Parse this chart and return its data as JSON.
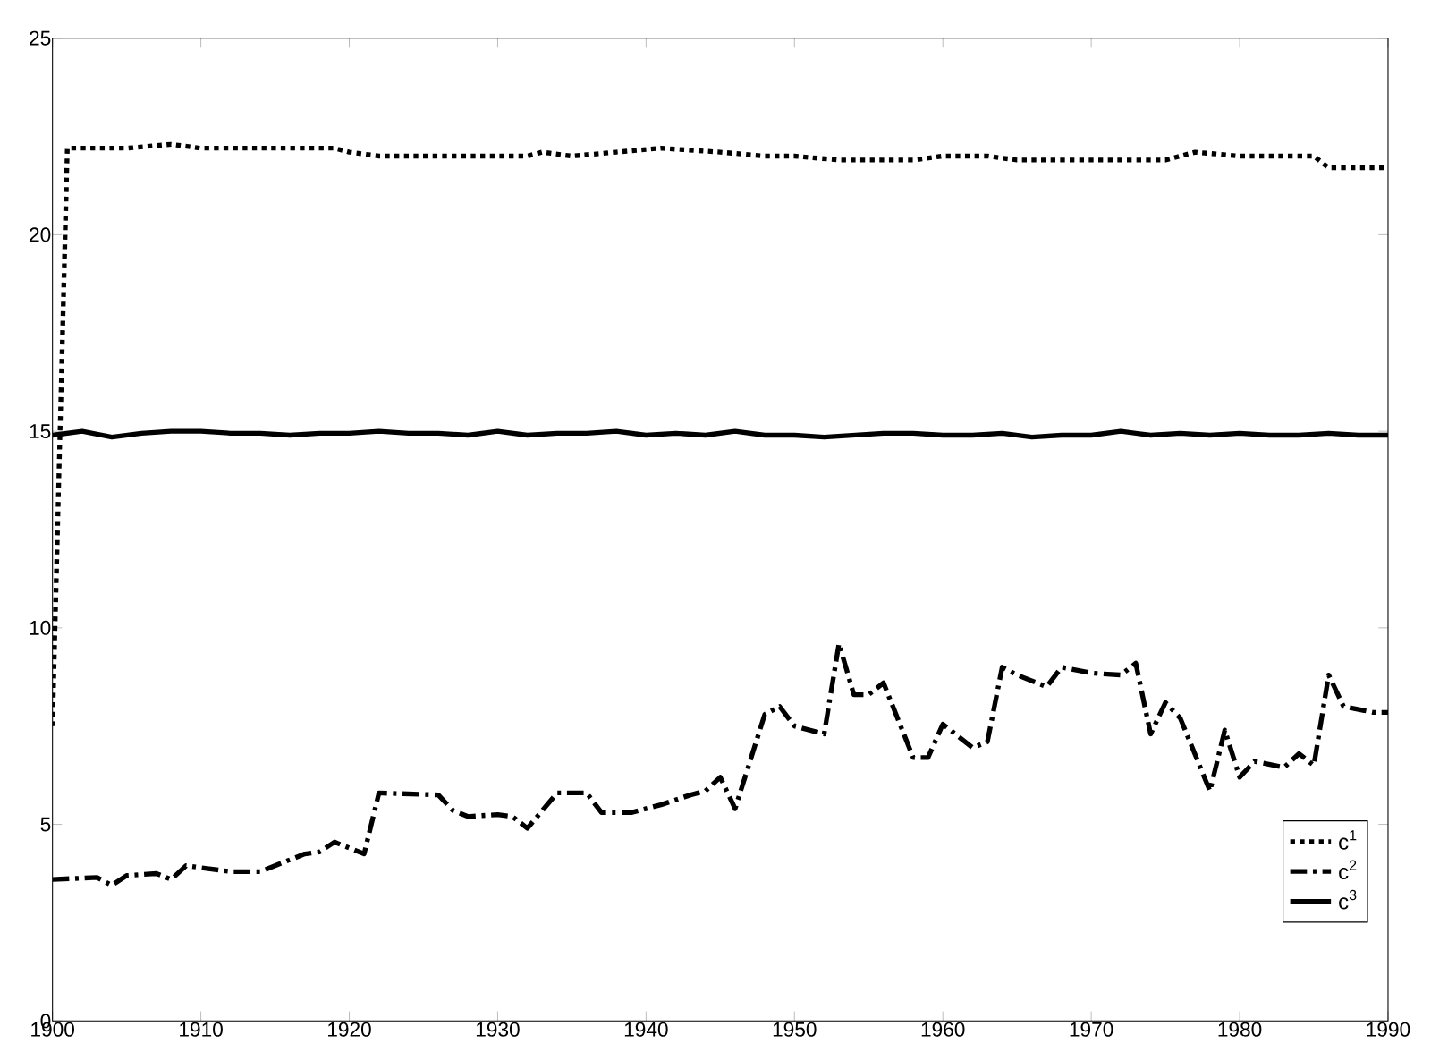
{
  "chart_data": {
    "type": "line",
    "xlim": [
      1900,
      1990
    ],
    "xticks": [
      1900,
      1910,
      1920,
      1930,
      1940,
      1950,
      1960,
      1970,
      1980,
      1990
    ],
    "ylim": [
      0,
      25
    ],
    "yticks": [
      0,
      5,
      10,
      15,
      20,
      25
    ],
    "grid": false,
    "legend": "bottom right",
    "marker": "none",
    "series": [
      {
        "name": "c$^{1}$",
        "color": "#000000",
        "line_style": "dotted",
        "x": [
          1900,
          1901,
          1905,
          1908,
          1910,
          1915,
          1919,
          1920,
          1922,
          1925,
          1930,
          1932,
          1933,
          1935,
          1938,
          1941,
          1945,
          1948,
          1950,
          1953,
          1955,
          1958,
          1960,
          1963,
          1965,
          1970,
          1972,
          1973,
          1975,
          1977,
          1980,
          1984,
          1985,
          1986,
          1990
        ],
        "values": [
          7.5,
          22.2,
          22.2,
          22.3,
          22.2,
          22.2,
          22.2,
          22.1,
          22.0,
          22.0,
          22.0,
          22.0,
          22.1,
          22.0,
          22.1,
          22.2,
          22.1,
          22.0,
          22.0,
          21.9,
          21.9,
          21.9,
          22.0,
          22.0,
          21.9,
          21.9,
          21.9,
          21.9,
          21.9,
          22.1,
          22.0,
          22.0,
          22.0,
          21.7,
          21.7
        ]
      },
      {
        "name": "c$^{2}$",
        "color": "#000000",
        "line_style": "dashdot",
        "x": [
          1900,
          1903,
          1904,
          1905,
          1907,
          1908,
          1909,
          1912,
          1914,
          1916,
          1917,
          1918,
          1919,
          1921,
          1922,
          1926,
          1927,
          1928,
          1930,
          1931,
          1932,
          1934,
          1936,
          1937,
          1939,
          1941,
          1943,
          1944,
          1945,
          1946,
          1948,
          1949,
          1950,
          1952,
          1953,
          1954,
          1955,
          1956,
          1958,
          1959,
          1960,
          1961,
          1962,
          1963,
          1964,
          1965,
          1967,
          1968,
          1970,
          1972,
          1973,
          1974,
          1975,
          1976,
          1978,
          1979,
          1980,
          1981,
          1983,
          1984,
          1985,
          1986,
          1987,
          1989,
          1990
        ],
        "values": [
          3.6,
          3.65,
          3.45,
          3.7,
          3.75,
          3.6,
          3.95,
          3.8,
          3.8,
          4.1,
          4.25,
          4.3,
          4.55,
          4.25,
          5.8,
          5.75,
          5.35,
          5.2,
          5.25,
          5.2,
          4.9,
          5.8,
          5.8,
          5.3,
          5.3,
          5.5,
          5.75,
          5.85,
          6.2,
          5.4,
          7.8,
          8.0,
          7.5,
          7.3,
          9.6,
          8.3,
          8.3,
          8.6,
          6.7,
          6.7,
          7.55,
          7.25,
          6.95,
          7.1,
          9.0,
          8.8,
          8.5,
          9.0,
          8.85,
          8.8,
          9.1,
          7.3,
          8.1,
          7.7,
          5.85,
          7.4,
          6.2,
          6.6,
          6.45,
          6.8,
          6.5,
          8.8,
          8.0,
          7.85,
          7.85
        ]
      },
      {
        "name": "c$^{3}$",
        "color": "#000000",
        "line_style": "solid",
        "x": [
          1900,
          1902,
          1904,
          1906,
          1908,
          1910,
          1912,
          1914,
          1916,
          1918,
          1920,
          1922,
          1924,
          1926,
          1928,
          1930,
          1932,
          1934,
          1936,
          1938,
          1940,
          1942,
          1944,
          1946,
          1948,
          1950,
          1952,
          1954,
          1956,
          1958,
          1960,
          1962,
          1964,
          1966,
          1968,
          1970,
          1972,
          1974,
          1976,
          1978,
          1980,
          1982,
          1984,
          1986,
          1988,
          1990
        ],
        "values": [
          14.9,
          15.0,
          14.85,
          14.95,
          15.0,
          15.0,
          14.95,
          14.95,
          14.9,
          14.95,
          14.95,
          15.0,
          14.95,
          14.95,
          14.9,
          15.0,
          14.9,
          14.95,
          14.95,
          15.0,
          14.9,
          14.95,
          14.9,
          15.0,
          14.9,
          14.9,
          14.85,
          14.9,
          14.95,
          14.95,
          14.9,
          14.9,
          14.95,
          14.85,
          14.9,
          14.9,
          15.0,
          14.9,
          14.95,
          14.9,
          14.95,
          14.9,
          14.9,
          14.95,
          14.9,
          14.9
        ]
      }
    ]
  }
}
